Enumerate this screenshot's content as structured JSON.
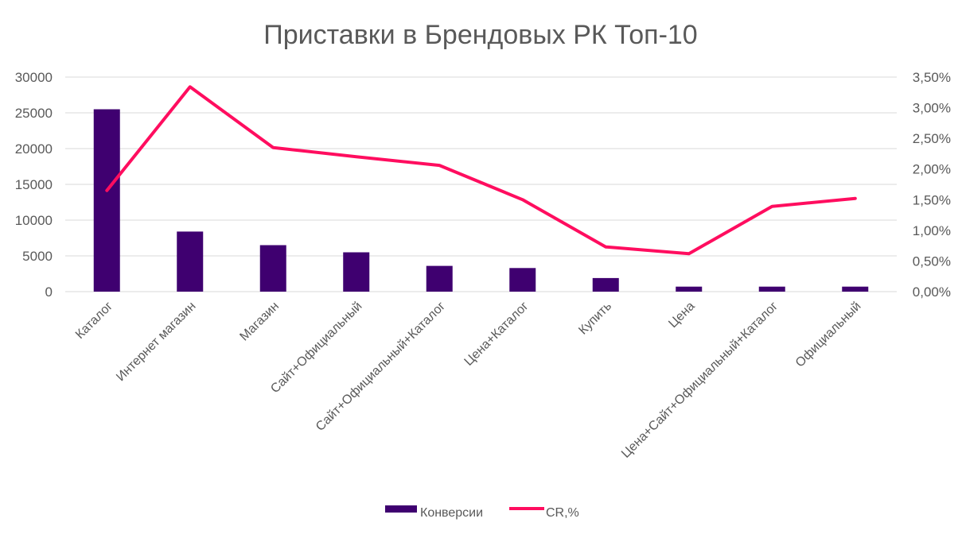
{
  "chart_data": {
    "type": "bar",
    "title": "Приставки в Брендовых РК Топ-10",
    "categories": [
      "Каталог",
      "Интернет магазин",
      "Магазин",
      "Сайт+Официальный",
      "Сайт+Официальный+Каталог",
      "Цена+Каталог",
      "Купить",
      "Цена",
      "Цена+Сайт+Официальный+Каталог",
      "Официальный"
    ],
    "series": [
      {
        "name": "Конверсии",
        "type": "bar",
        "axis": "left",
        "color": "#3f0070",
        "values": [
          25500,
          8400,
          6500,
          5500,
          3600,
          3300,
          1900,
          700,
          700,
          700
        ]
      },
      {
        "name": "CR,%",
        "type": "line",
        "axis": "right",
        "color": "#ff0d5f",
        "values": [
          1.65,
          3.34,
          2.35,
          2.2,
          2.06,
          1.5,
          0.73,
          0.62,
          1.39,
          1.52
        ]
      }
    ],
    "y_left": {
      "range": [
        0,
        30000
      ],
      "ticks": [
        "0",
        "5000",
        "10000",
        "15000",
        "20000",
        "25000",
        "30000"
      ],
      "tick_values": [
        0,
        5000,
        10000,
        15000,
        20000,
        25000,
        30000
      ]
    },
    "y_right": {
      "range": [
        0,
        3.5
      ],
      "ticks": [
        "0,00%",
        "0,50%",
        "1,00%",
        "1,50%",
        "2,00%",
        "2,50%",
        "3,00%",
        "3,50%"
      ],
      "tick_values": [
        0,
        0.5,
        1,
        1.5,
        2,
        2.5,
        3,
        3.5
      ]
    },
    "grid": true,
    "legend_position": "bottom"
  }
}
